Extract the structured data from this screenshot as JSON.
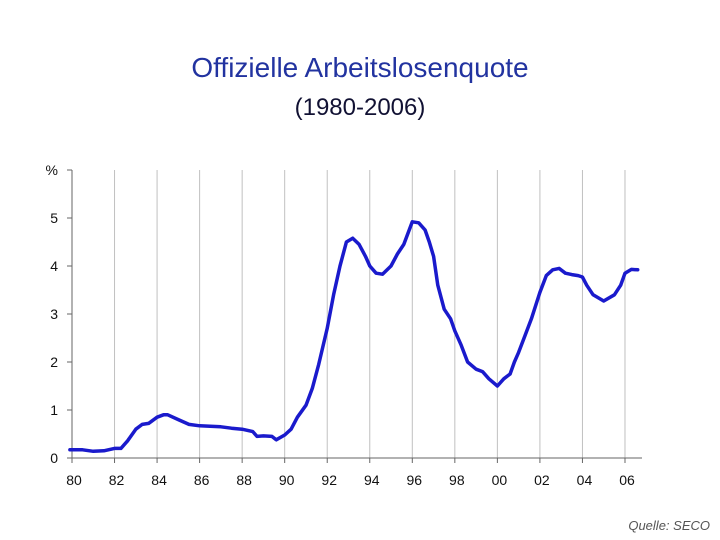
{
  "title": "Offizielle Arbeitslosenquote",
  "subtitle": "(1980-2006)",
  "source": "Quelle: SECO",
  "colors": {
    "line": "#1a1acc",
    "grid": "#c0c0c0",
    "axis": "#666666"
  },
  "chart_data": {
    "type": "line",
    "title": "Offizielle Arbeitslosenquote",
    "subtitle": "(1980-2006)",
    "ylabel": "%",
    "xlim": [
      1980,
      2006.8
    ],
    "ylim": [
      0,
      6
    ],
    "x_ticks": [
      {
        "value": 1980,
        "label": "80"
      },
      {
        "value": 1982,
        "label": "82"
      },
      {
        "value": 1984,
        "label": "84"
      },
      {
        "value": 1986,
        "label": "86"
      },
      {
        "value": 1988,
        "label": "88"
      },
      {
        "value": 1990,
        "label": "90"
      },
      {
        "value": 1992,
        "label": "92"
      },
      {
        "value": 1994,
        "label": "94"
      },
      {
        "value": 1996,
        "label": "96"
      },
      {
        "value": 1998,
        "label": "98"
      },
      {
        "value": 2000,
        "label": "00"
      },
      {
        "value": 2002,
        "label": "02"
      },
      {
        "value": 2004,
        "label": "04"
      },
      {
        "value": 2006,
        "label": "06"
      }
    ],
    "y_ticks": [
      {
        "value": 0,
        "label": "0"
      },
      {
        "value": 1,
        "label": "1"
      },
      {
        "value": 2,
        "label": "2"
      },
      {
        "value": 3,
        "label": "3"
      },
      {
        "value": 4,
        "label": "4"
      },
      {
        "value": 5,
        "label": "5"
      },
      {
        "value": 6,
        "label": "%"
      }
    ],
    "grid": "vertical",
    "series": [
      {
        "values_x": [
          1979.9,
          1980.5,
          1981.0,
          1981.5,
          1982.0,
          1982.3,
          1982.6,
          1983.0,
          1983.3,
          1983.6,
          1984.0,
          1984.3,
          1984.5,
          1985.0,
          1985.5,
          1986.0,
          1986.5,
          1987.0,
          1987.5,
          1988.0,
          1988.5,
          1988.7,
          1989.0,
          1989.4,
          1989.6,
          1990.0,
          1990.3,
          1990.6,
          1991.0,
          1991.3,
          1991.6,
          1992.0,
          1992.3,
          1992.6,
          1992.9,
          1993.2,
          1993.5,
          1993.8,
          1994.0,
          1994.3,
          1994.6,
          1995.0,
          1995.3,
          1995.6,
          1996.0,
          1996.3,
          1996.6,
          1996.8,
          1997.0,
          1997.2,
          1997.5,
          1997.8,
          1998.0,
          1998.3,
          1998.6,
          1999.0,
          1999.3,
          1999.6,
          2000.0,
          2000.3,
          2000.6,
          2000.8,
          2001.0,
          2001.3,
          2001.6,
          2002.0,
          2002.3,
          2002.6,
          2002.9,
          2003.2,
          2003.5,
          2003.8,
          2004.0,
          2004.2,
          2004.5,
          2005.0,
          2005.5,
          2005.8,
          2006.0,
          2006.3,
          2006.6
        ],
        "values": [
          0.17,
          0.17,
          0.14,
          0.15,
          0.2,
          0.2,
          0.35,
          0.6,
          0.7,
          0.72,
          0.85,
          0.9,
          0.9,
          0.8,
          0.7,
          0.67,
          0.66,
          0.65,
          0.62,
          0.6,
          0.55,
          0.45,
          0.46,
          0.45,
          0.38,
          0.48,
          0.6,
          0.85,
          1.1,
          1.45,
          1.95,
          2.7,
          3.4,
          4.0,
          4.5,
          4.58,
          4.45,
          4.2,
          4.0,
          3.85,
          3.83,
          4.0,
          4.25,
          4.45,
          4.92,
          4.9,
          4.75,
          4.5,
          4.2,
          3.6,
          3.1,
          2.9,
          2.65,
          2.35,
          2.0,
          1.85,
          1.8,
          1.65,
          1.5,
          1.65,
          1.75,
          2.0,
          2.2,
          2.55,
          2.9,
          3.45,
          3.8,
          3.92,
          3.95,
          3.85,
          3.82,
          3.8,
          3.77,
          3.6,
          3.4,
          3.27,
          3.4,
          3.6,
          3.85,
          3.93,
          3.92
        ]
      }
    ]
  }
}
